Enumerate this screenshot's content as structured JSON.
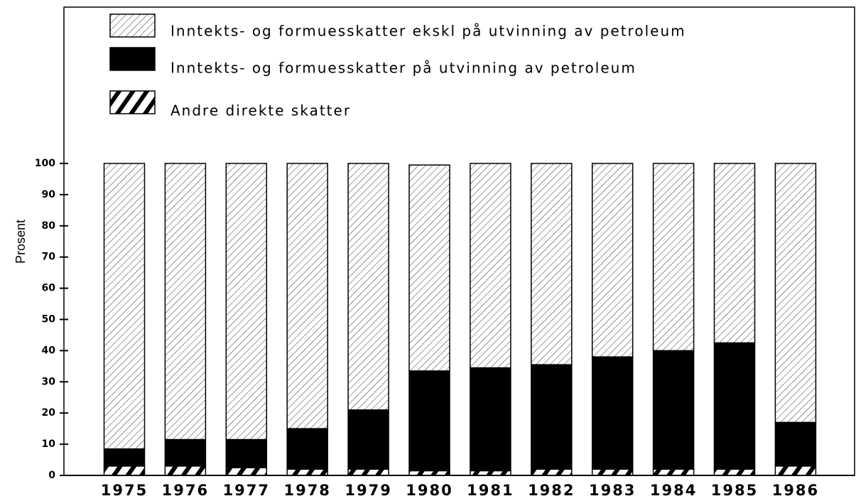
{
  "chart_data": {
    "type": "stacked-bar",
    "y_label": "Prosent",
    "categories": [
      "1975",
      "1976",
      "1977",
      "1978",
      "1979",
      "1980",
      "1981",
      "1982",
      "1983",
      "1984",
      "1985",
      "1986"
    ],
    "series": [
      {
        "name": "Andre direkte skatter",
        "color": "#000000",
        "pattern": "coarse-hatch",
        "values": [
          3,
          3,
          2.5,
          2,
          2,
          1.5,
          1.5,
          2,
          2,
          2,
          2,
          3
        ]
      },
      {
        "name": "Inntekts- og formuesskatter på utvinning av petroleum",
        "color": "#000000",
        "pattern": "solid",
        "values": [
          5.5,
          8.5,
          9,
          13,
          19,
          32,
          33,
          33.5,
          36,
          38,
          40.5,
          14
        ]
      },
      {
        "name": "Inntekts- og formuesskatter ekskl på utvinning av petroleum",
        "color": "#000000",
        "pattern": "fine-hatch",
        "values": [
          91.5,
          88.5,
          88.5,
          85,
          79,
          66,
          65.5,
          64.5,
          62,
          60,
          57.5,
          83
        ]
      }
    ],
    "ylim": [
      0,
      100
    ],
    "yticks": [
      0,
      10,
      20,
      30,
      40,
      50,
      60,
      70,
      80,
      90,
      100
    ]
  }
}
